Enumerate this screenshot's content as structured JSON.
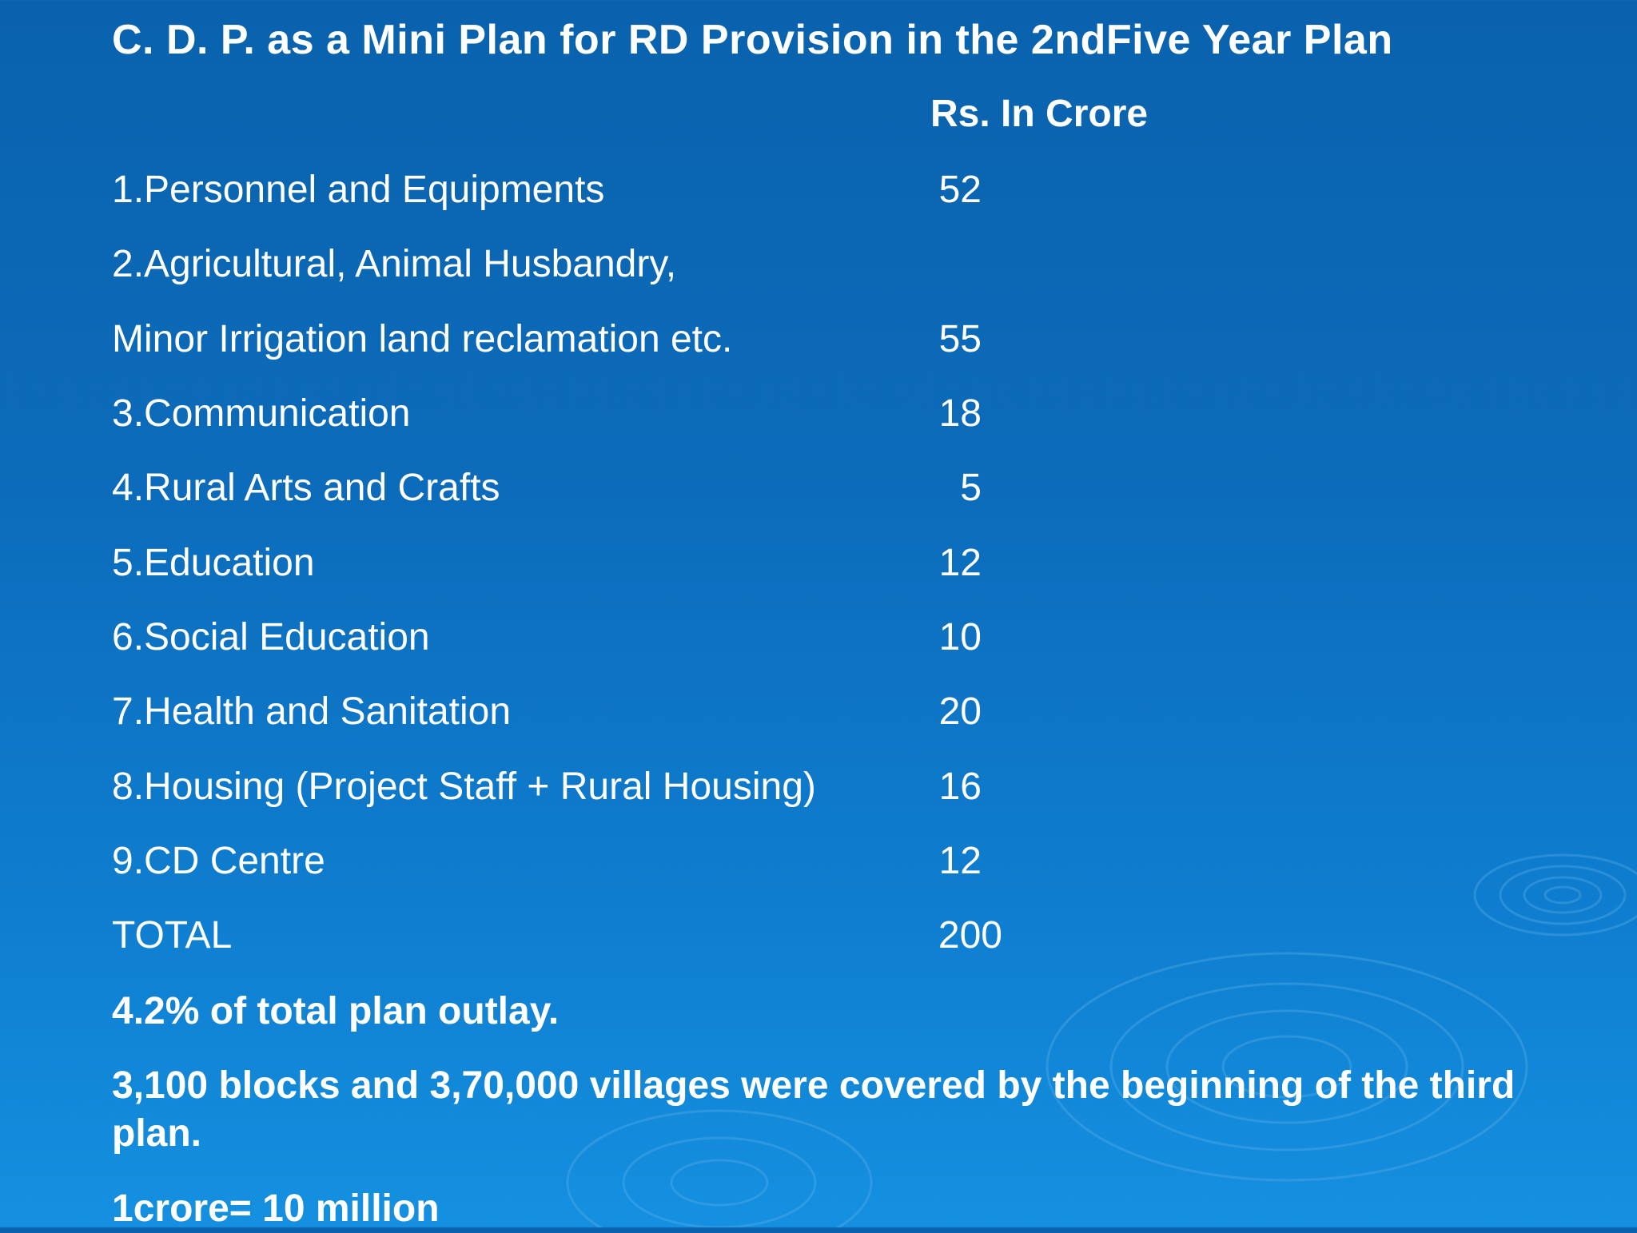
{
  "slide": {
    "title": "C. D. P. as a Mini Plan for RD Provision in the 2ndFive Year Plan",
    "unit_header": "Rs. In Crore",
    "rows": [
      {
        "label": "1.Personnel and Equipments",
        "value": "52"
      },
      {
        "label": "2.Agricultural, Animal Husbandry,",
        "value": ""
      },
      {
        "label": "Minor Irrigation land reclamation etc.",
        "value": "55"
      },
      {
        "label": "3.Communication",
        "value": "18"
      },
      {
        "label": "4.Rural Arts and Crafts",
        "value": "5"
      },
      {
        "label": "5.Education",
        "value": "12"
      },
      {
        "label": "6.Social Education",
        "value": "10"
      },
      {
        "label": "7.Health and Sanitation",
        "value": "20"
      },
      {
        "label": "8.Housing (Project Staff + Rural Housing)",
        "value": "16"
      },
      {
        "label": "9.CD Centre",
        "value": "12"
      },
      {
        "label": "TOTAL",
        "value": "200"
      }
    ],
    "notes": [
      "4.2% of total plan outlay.",
      "3,100 blocks and 3,70,000 villages were covered by the beginning of the third plan.",
      "1crore= 10 million"
    ]
  },
  "colors": {
    "background_top": "#0a62ad",
    "background_bottom": "#1590e0",
    "text": "#ffffff"
  }
}
